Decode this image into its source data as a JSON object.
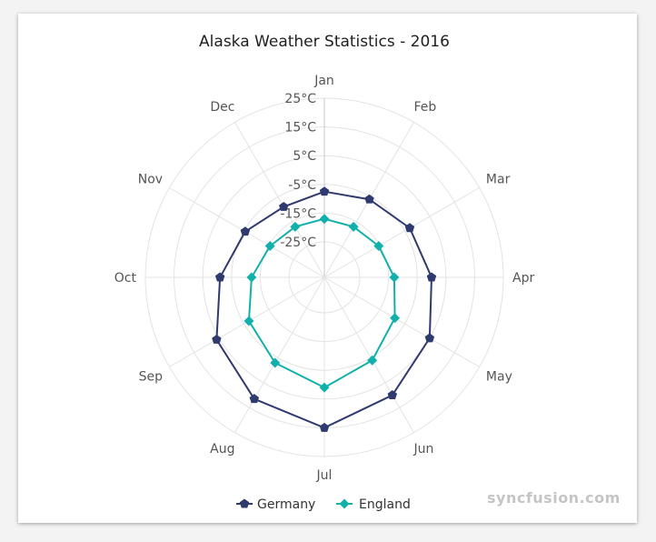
{
  "chart_data": {
    "type": "radar",
    "title": "Alaska Weather Statistics - 2016",
    "categories": [
      "Jan",
      "Feb",
      "Mar",
      "Apr",
      "May",
      "Jun",
      "Jul",
      "Aug",
      "Sep",
      "Oct",
      "Nov",
      "Dec"
    ],
    "y_ticks": [
      "25°C",
      "15°C",
      "5°C",
      "-5°C",
      "-15°C",
      "-25°C"
    ],
    "ylim": [
      -25,
      25
    ],
    "grid": true,
    "legend_position": "bottom",
    "series": [
      {
        "name": "Germany",
        "color": "#2f3a6f",
        "marker": "pentagon",
        "values": [
          -7.5,
          -6,
          -3,
          0,
          5,
          10,
          15,
          11.5,
          6,
          -1,
          -5.5,
          -9
        ]
      },
      {
        "name": "England",
        "color": "#12b0ab",
        "marker": "diamond",
        "values": [
          -17,
          -17,
          -15.5,
          -13,
          -9,
          -4,
          1,
          -3,
          -7,
          -12,
          -15.5,
          -17
        ]
      }
    ]
  },
  "watermark": "syncfusion.com"
}
